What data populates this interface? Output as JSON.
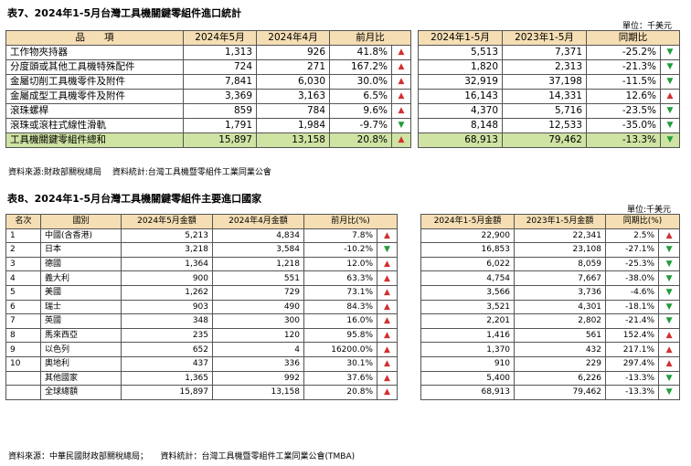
{
  "table7": {
    "title": "表7、2024年1-5月台灣工具機關鍵零組件進口統計",
    "unit": "單位：千美元",
    "headers": [
      "品　　項",
      "2024年5月",
      "2024年4月",
      "前月比",
      "2024年1-5月",
      "2023年1-5月",
      "同期比"
    ],
    "rows": [
      {
        "item": "工作物夾持器",
        "may": "1,313",
        "apr": "926",
        "mom": "41.8%",
        "mom_dir": "up",
        "ytd24": "5,513",
        "ytd23": "7,371",
        "yoy": "-25.2%",
        "yoy_dir": "down"
      },
      {
        "item": "分度頭或其他工具機特殊配件",
        "may": "724",
        "apr": "271",
        "mom": "167.2%",
        "mom_dir": "up",
        "ytd24": "1,820",
        "ytd23": "2,313",
        "yoy": "-21.3%",
        "yoy_dir": "down"
      },
      {
        "item": "金屬切削工具機零件及附件",
        "may": "7,841",
        "apr": "6,030",
        "mom": "30.0%",
        "mom_dir": "up",
        "ytd24": "32,919",
        "ytd23": "37,198",
        "yoy": "-11.5%",
        "yoy_dir": "down"
      },
      {
        "item": "金屬成型工具機零件及附件",
        "may": "3,369",
        "apr": "3,163",
        "mom": "6.5%",
        "mom_dir": "up",
        "ytd24": "16,143",
        "ytd23": "14,331",
        "yoy": "12.6%",
        "yoy_dir": "up"
      },
      {
        "item": "滾珠螺桿",
        "may": "859",
        "apr": "784",
        "mom": "9.6%",
        "mom_dir": "up",
        "ytd24": "4,370",
        "ytd23": "5,716",
        "yoy": "-23.5%",
        "yoy_dir": "down"
      },
      {
        "item": "滾珠或滾柱式線性滑軌",
        "may": "1,791",
        "apr": "1,984",
        "mom": "-9.7%",
        "mom_dir": "down",
        "ytd24": "8,148",
        "ytd23": "12,533",
        "yoy": "-35.0%",
        "yoy_dir": "down"
      },
      {
        "item": "工具機關鍵零組件總和",
        "may": "15,897",
        "apr": "13,158",
        "mom": "20.8%",
        "mom_dir": "up",
        "ytd24": "68,913",
        "ytd23": "79,462",
        "yoy": "-13.3%",
        "yoy_dir": "down"
      }
    ],
    "source": "資料來源:財政部關稅總局　 資料統計:台灣工具機暨零組件工業同業公會"
  },
  "table8": {
    "title": "表8、2024年1-5月台灣工具機關鍵零組件主要進口國家",
    "unit": "單位:千美元",
    "headers": [
      "名次",
      "國別",
      "2024年5月金額",
      "2024年4月金額",
      "前月比(%)",
      "2024年1-5月金額",
      "2023年1-5月金額",
      "同期比(%)"
    ],
    "rows": [
      {
        "rank": "1",
        "country": "中國(含香港)",
        "may": "5,213",
        "apr": "4,834",
        "mom": "7.8%",
        "mom_dir": "up",
        "ytd24": "22,900",
        "ytd23": "22,341",
        "yoy": "2.5%",
        "yoy_dir": "up"
      },
      {
        "rank": "2",
        "country": "日本",
        "may": "3,218",
        "apr": "3,584",
        "mom": "-10.2%",
        "mom_dir": "down",
        "ytd24": "16,853",
        "ytd23": "23,108",
        "yoy": "-27.1%",
        "yoy_dir": "down"
      },
      {
        "rank": "3",
        "country": "德國",
        "may": "1,364",
        "apr": "1,218",
        "mom": "12.0%",
        "mom_dir": "up",
        "ytd24": "6,022",
        "ytd23": "8,059",
        "yoy": "-25.3%",
        "yoy_dir": "down"
      },
      {
        "rank": "4",
        "country": "義大利",
        "may": "900",
        "apr": "551",
        "mom": "63.3%",
        "mom_dir": "up",
        "ytd24": "4,754",
        "ytd23": "7,667",
        "yoy": "-38.0%",
        "yoy_dir": "down"
      },
      {
        "rank": "5",
        "country": "美國",
        "may": "1,262",
        "apr": "729",
        "mom": "73.1%",
        "mom_dir": "up",
        "ytd24": "3,566",
        "ytd23": "3,736",
        "yoy": "-4.6%",
        "yoy_dir": "down"
      },
      {
        "rank": "6",
        "country": "瑞士",
        "may": "903",
        "apr": "490",
        "mom": "84.3%",
        "mom_dir": "up",
        "ytd24": "3,521",
        "ytd23": "4,301",
        "yoy": "-18.1%",
        "yoy_dir": "down"
      },
      {
        "rank": "7",
        "country": "英國",
        "may": "348",
        "apr": "300",
        "mom": "16.0%",
        "mom_dir": "up",
        "ytd24": "2,201",
        "ytd23": "2,802",
        "yoy": "-21.4%",
        "yoy_dir": "down"
      },
      {
        "rank": "8",
        "country": "馬來西亞",
        "may": "235",
        "apr": "120",
        "mom": "95.8%",
        "mom_dir": "up",
        "ytd24": "1,416",
        "ytd23": "561",
        "yoy": "152.4%",
        "yoy_dir": "up"
      },
      {
        "rank": "9",
        "country": "以色列",
        "may": "652",
        "apr": "4",
        "mom": "16200.0%",
        "mom_dir": "up",
        "ytd24": "1,370",
        "ytd23": "432",
        "yoy": "217.1%",
        "yoy_dir": "up"
      },
      {
        "rank": "10",
        "country": "奧地利",
        "may": "437",
        "apr": "336",
        "mom": "30.1%",
        "mom_dir": "up",
        "ytd24": "910",
        "ytd23": "229",
        "yoy": "297.4%",
        "yoy_dir": "up"
      },
      {
        "rank": "",
        "country": "其他國家",
        "may": "1,365",
        "apr": "992",
        "mom": "37.6%",
        "mom_dir": "up",
        "ytd24": "5,400",
        "ytd23": "6,226",
        "yoy": "-13.3%",
        "yoy_dir": "down"
      },
      {
        "rank": "",
        "country": "全球總額",
        "may": "15,897",
        "apr": "13,158",
        "mom": "20.8%",
        "mom_dir": "up",
        "ytd24": "68,913",
        "ytd23": "79,462",
        "yoy": "-13.3%",
        "yoy_dir": "down"
      }
    ],
    "source": "資料來源：中華民國財政部關稅總局；　　資料統計：台灣工具機暨零組件工業同業公會(TMBA)"
  },
  "colors": {
    "header_bg": "#f5deb3",
    "total_bg": "#cfe3a3",
    "up": "#d32f2f",
    "down": "#1f9d3a"
  },
  "arrows": {
    "up": "▲",
    "down": "▼"
  }
}
